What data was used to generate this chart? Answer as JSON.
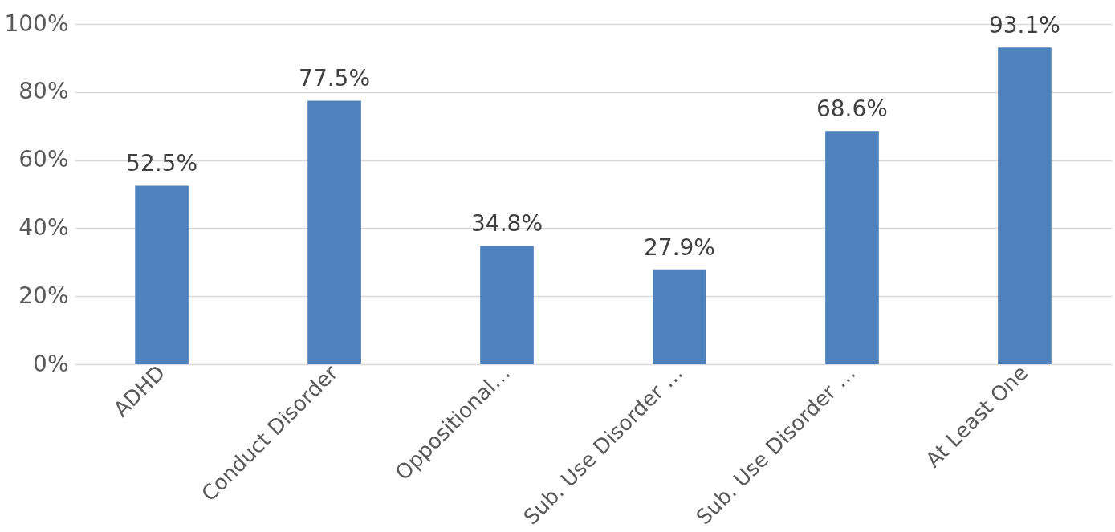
{
  "chart_data": {
    "type": "bar",
    "categories": [
      "ADHD",
      "Conduct Disorder",
      "Oppositional…",
      "Sub. Use Disorder …",
      "Sub. Use Disorder …",
      "At Least One"
    ],
    "values": [
      52.5,
      77.5,
      34.8,
      27.9,
      68.6,
      93.1
    ],
    "value_labels": [
      "52.5%",
      "77.5%",
      "34.8%",
      "27.9%",
      "68.6%",
      "93.1%"
    ],
    "color": "#4f81bd",
    "ylim": [
      0,
      100
    ],
    "yticks": [
      {
        "value": 0,
        "label": "0%"
      },
      {
        "value": 20,
        "label": "20%"
      },
      {
        "value": 40,
        "label": "40%"
      },
      {
        "value": 60,
        "label": "60%"
      },
      {
        "value": 80,
        "label": "80%"
      },
      {
        "value": 100,
        "label": "100%"
      }
    ],
    "grid": "y"
  }
}
